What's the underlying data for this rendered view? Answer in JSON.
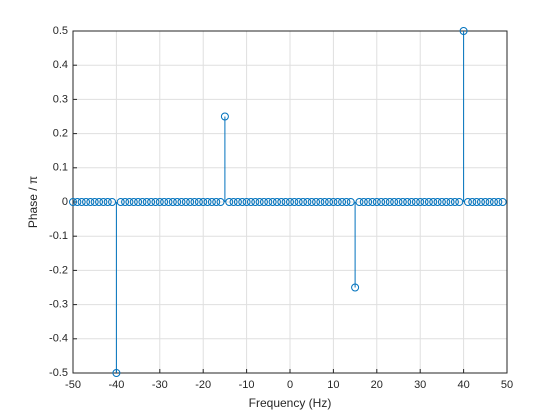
{
  "chart_data": {
    "type": "stem",
    "xlabel": "Frequency (Hz)",
    "ylabel": "Phase / π",
    "x": [
      -50,
      -49,
      -48,
      -47,
      -46,
      -45,
      -44,
      -43,
      -42,
      -41,
      -40,
      -39,
      -38,
      -37,
      -36,
      -35,
      -34,
      -33,
      -32,
      -31,
      -30,
      -29,
      -28,
      -27,
      -26,
      -25,
      -24,
      -23,
      -22,
      -21,
      -20,
      -19,
      -18,
      -17,
      -16,
      -15,
      -14,
      -13,
      -12,
      -11,
      -10,
      -9,
      -8,
      -7,
      -6,
      -5,
      -4,
      -3,
      -2,
      -1,
      0,
      1,
      2,
      3,
      4,
      5,
      6,
      7,
      8,
      9,
      10,
      11,
      12,
      13,
      14,
      15,
      16,
      17,
      18,
      19,
      20,
      21,
      22,
      23,
      24,
      25,
      26,
      27,
      28,
      29,
      30,
      31,
      32,
      33,
      34,
      35,
      36,
      37,
      38,
      39,
      40,
      41,
      42,
      43,
      44,
      45,
      46,
      47,
      48,
      49
    ],
    "values": [
      0,
      0,
      0,
      0,
      0,
      0,
      0,
      0,
      0,
      0,
      -0.5,
      0,
      0,
      0,
      0,
      0,
      0,
      0,
      0,
      0,
      0,
      0,
      0,
      0,
      0,
      0,
      0,
      0,
      0,
      0,
      0,
      0,
      0,
      0,
      0,
      0.25,
      0,
      0,
      0,
      0,
      0,
      0,
      0,
      0,
      0,
      0,
      0,
      0,
      0,
      0,
      0,
      0,
      0,
      0,
      0,
      0,
      0,
      0,
      0,
      0,
      0,
      0,
      0,
      0,
      0,
      -0.25,
      0,
      0,
      0,
      0,
      0,
      0,
      0,
      0,
      0,
      0,
      0,
      0,
      0,
      0,
      0,
      0,
      0,
      0,
      0,
      0,
      0,
      0,
      0,
      0,
      0.5,
      0,
      0,
      0,
      0,
      0,
      0,
      0,
      0,
      0
    ],
    "color": "#0072bd",
    "xlim": [
      -50,
      50
    ],
    "xticks": [
      -50,
      -40,
      -30,
      -20,
      -10,
      0,
      10,
      20,
      30,
      40,
      50
    ],
    "ylim": [
      -0.5,
      0.5
    ],
    "yticks": [
      -0.5,
      -0.4,
      -0.3,
      -0.2,
      -0.1,
      0,
      0.1,
      0.2,
      0.3,
      0.4,
      0.5
    ],
    "grid": true
  }
}
